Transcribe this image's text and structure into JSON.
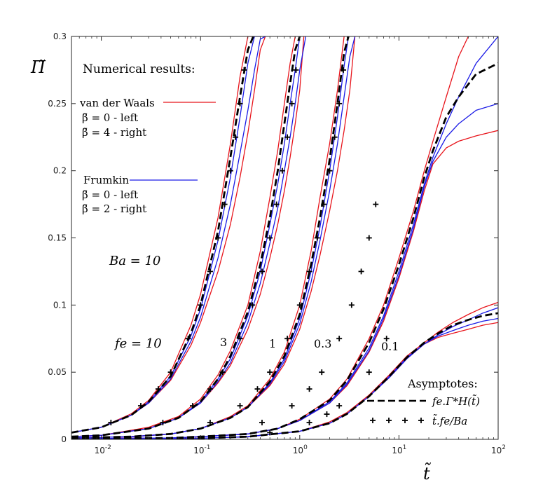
{
  "chart_data": {
    "type": "line",
    "xscale": "log",
    "xlim": [
      0.005,
      100
    ],
    "ylim": [
      0,
      0.3
    ],
    "xlabel": "t̃",
    "ylabel": "Π̃",
    "x_ticks": [
      {
        "value": 0.01,
        "base": "10",
        "exp": "-2"
      },
      {
        "value": 0.1,
        "base": "10",
        "exp": "-1"
      },
      {
        "value": 1,
        "base": "10",
        "exp": "0"
      },
      {
        "value": 10,
        "base": "10",
        "exp": "1"
      },
      {
        "value": 100,
        "base": "10",
        "exp": "2"
      }
    ],
    "y_ticks": [
      {
        "value": 0,
        "label": "0"
      },
      {
        "value": 0.05,
        "label": "0.05"
      },
      {
        "value": 0.1,
        "label": "0.1"
      },
      {
        "value": 0.15,
        "label": "0.15"
      },
      {
        "value": 0.2,
        "label": "0.2"
      },
      {
        "value": 0.25,
        "label": "0.25"
      },
      {
        "value": 0.3,
        "label": "0.3"
      }
    ],
    "colors": {
      "vdw": "#e8141b",
      "frumkin": "#1a1ae6",
      "asymptote": "#000000"
    },
    "legend": {
      "numerical_title": "Numerical results:",
      "vdw_name": "van der Waals",
      "vdw_left": "β̃ = 0 - left",
      "vdw_right": "β̃ = 4 - right",
      "frumkin_name": "Frumkin",
      "frumkin_left": "β̃ = 0 - left",
      "frumkin_right": "β̃ = 2 - right",
      "asymptotes_title": "Asymptotes:",
      "dashed_label": "fe.Γ*H(t̃)",
      "plus_label": "t̃.fe/Ba"
    },
    "annotations": {
      "ba_label": "Ba = 10",
      "fe_label": "fe = 10",
      "fe_values": [
        "3",
        "1",
        "0.3",
        "0.1"
      ]
    },
    "series": [
      {
        "name": "van der Waals β̃=0, fe=10",
        "group": "vdw",
        "x": [
          0.005,
          0.01,
          0.02,
          0.03,
          0.05,
          0.08,
          0.1,
          0.15,
          0.2,
          0.25,
          0.3,
          0.35
        ],
        "y": [
          0.005,
          0.009,
          0.019,
          0.029,
          0.05,
          0.085,
          0.108,
          0.165,
          0.22,
          0.27,
          0.3,
          0.3
        ]
      },
      {
        "name": "van der Waals β̃=4, fe=10",
        "group": "vdw",
        "x": [
          0.005,
          0.01,
          0.02,
          0.03,
          0.05,
          0.08,
          0.1,
          0.15,
          0.2,
          0.25,
          0.3,
          0.35,
          0.4,
          0.45
        ],
        "y": [
          0.005,
          0.009,
          0.018,
          0.027,
          0.044,
          0.07,
          0.087,
          0.125,
          0.16,
          0.195,
          0.228,
          0.26,
          0.29,
          0.3
        ]
      },
      {
        "name": "Frumkin β̃=0, fe=10",
        "group": "frumkin",
        "x": [
          0.005,
          0.01,
          0.02,
          0.03,
          0.05,
          0.08,
          0.1,
          0.15,
          0.2,
          0.25,
          0.3,
          0.35,
          0.4
        ],
        "y": [
          0.005,
          0.009,
          0.018,
          0.028,
          0.047,
          0.077,
          0.097,
          0.148,
          0.195,
          0.24,
          0.28,
          0.3,
          0.3
        ]
      },
      {
        "name": "Frumkin β̃=2, fe=10",
        "group": "frumkin",
        "x": [
          0.005,
          0.01,
          0.02,
          0.03,
          0.05,
          0.08,
          0.1,
          0.15,
          0.2,
          0.25,
          0.3,
          0.35,
          0.4,
          0.45
        ],
        "y": [
          0.005,
          0.009,
          0.018,
          0.027,
          0.045,
          0.073,
          0.091,
          0.135,
          0.175,
          0.213,
          0.245,
          0.275,
          0.298,
          0.3
        ]
      },
      {
        "name": "Asymptote fe.ΓH*, fe=10",
        "group": "asym",
        "x": [
          0.005,
          0.01,
          0.02,
          0.03,
          0.05,
          0.08,
          0.1,
          0.15,
          0.2,
          0.25,
          0.3,
          0.34
        ],
        "y": [
          0.005,
          0.009,
          0.018,
          0.028,
          0.047,
          0.079,
          0.1,
          0.155,
          0.21,
          0.255,
          0.29,
          0.3
        ]
      },
      {
        "name": "van der Waals β̃=0, fe=3",
        "group": "vdw",
        "x": [
          0.005,
          0.01,
          0.03,
          0.06,
          0.1,
          0.15,
          0.2,
          0.3,
          0.4,
          0.5,
          0.6,
          0.7,
          0.8,
          0.9
        ],
        "y": [
          0.002,
          0.003,
          0.009,
          0.017,
          0.03,
          0.048,
          0.066,
          0.1,
          0.14,
          0.18,
          0.215,
          0.25,
          0.28,
          0.3
        ]
      },
      {
        "name": "van der Waals β̃=4, fe=3",
        "group": "vdw",
        "x": [
          0.005,
          0.01,
          0.03,
          0.06,
          0.1,
          0.15,
          0.2,
          0.3,
          0.4,
          0.5,
          0.6,
          0.7,
          0.8,
          0.9,
          1.0,
          1.1
        ],
        "y": [
          0.002,
          0.003,
          0.008,
          0.016,
          0.027,
          0.042,
          0.055,
          0.082,
          0.108,
          0.135,
          0.16,
          0.185,
          0.21,
          0.235,
          0.26,
          0.3
        ]
      },
      {
        "name": "Frumkin β̃=0, fe=3",
        "group": "frumkin",
        "x": [
          0.005,
          0.01,
          0.03,
          0.06,
          0.1,
          0.15,
          0.2,
          0.3,
          0.4,
          0.5,
          0.6,
          0.7,
          0.8,
          0.9,
          1.0
        ],
        "y": [
          0.002,
          0.003,
          0.008,
          0.016,
          0.028,
          0.045,
          0.06,
          0.092,
          0.125,
          0.16,
          0.19,
          0.22,
          0.25,
          0.275,
          0.3
        ]
      },
      {
        "name": "Frumkin β̃=2, fe=3",
        "group": "frumkin",
        "x": [
          0.005,
          0.01,
          0.03,
          0.06,
          0.1,
          0.15,
          0.2,
          0.3,
          0.4,
          0.5,
          0.6,
          0.7,
          0.8,
          0.9,
          1.0,
          1.15
        ],
        "y": [
          0.002,
          0.003,
          0.008,
          0.016,
          0.027,
          0.043,
          0.057,
          0.087,
          0.116,
          0.146,
          0.172,
          0.2,
          0.225,
          0.25,
          0.275,
          0.3
        ]
      },
      {
        "name": "Asymptote fe.ΓH*, fe=3",
        "group": "asym",
        "x": [
          0.005,
          0.01,
          0.03,
          0.06,
          0.1,
          0.15,
          0.2,
          0.3,
          0.4,
          0.5,
          0.6,
          0.7,
          0.8,
          0.9,
          1.0
        ],
        "y": [
          0.002,
          0.003,
          0.008,
          0.016,
          0.028,
          0.045,
          0.062,
          0.095,
          0.13,
          0.165,
          0.2,
          0.235,
          0.265,
          0.29,
          0.3
        ]
      },
      {
        "name": "van der Waals β̃=0, fe=1",
        "group": "vdw",
        "x": [
          0.005,
          0.02,
          0.05,
          0.1,
          0.2,
          0.3,
          0.5,
          0.7,
          1.0,
          1.3,
          1.6,
          2.0,
          2.4,
          2.8
        ],
        "y": [
          0.001,
          0.002,
          0.004,
          0.008,
          0.017,
          0.025,
          0.045,
          0.065,
          0.1,
          0.14,
          0.18,
          0.22,
          0.26,
          0.3
        ]
      },
      {
        "name": "van der Waals β̃=4, fe=1",
        "group": "vdw",
        "x": [
          0.005,
          0.02,
          0.05,
          0.1,
          0.2,
          0.3,
          0.5,
          0.7,
          1.0,
          1.3,
          1.6,
          2.0,
          2.4,
          2.8,
          3.2,
          3.6
        ],
        "y": [
          0.001,
          0.002,
          0.004,
          0.008,
          0.016,
          0.024,
          0.04,
          0.056,
          0.082,
          0.11,
          0.137,
          0.17,
          0.2,
          0.23,
          0.26,
          0.3
        ]
      },
      {
        "name": "Frumkin β̃=0, fe=1",
        "group": "frumkin",
        "x": [
          0.005,
          0.02,
          0.05,
          0.1,
          0.2,
          0.3,
          0.5,
          0.7,
          1.0,
          1.3,
          1.6,
          2.0,
          2.4,
          2.8,
          3.1
        ],
        "y": [
          0.001,
          0.002,
          0.004,
          0.008,
          0.016,
          0.024,
          0.042,
          0.06,
          0.09,
          0.125,
          0.158,
          0.2,
          0.24,
          0.278,
          0.3
        ]
      },
      {
        "name": "Frumkin β̃=2, fe=1",
        "group": "frumkin",
        "x": [
          0.005,
          0.02,
          0.05,
          0.1,
          0.2,
          0.3,
          0.5,
          0.7,
          1.0,
          1.3,
          1.6,
          2.0,
          2.4,
          2.8,
          3.2,
          3.6
        ],
        "y": [
          0.001,
          0.002,
          0.004,
          0.008,
          0.016,
          0.024,
          0.041,
          0.058,
          0.086,
          0.117,
          0.148,
          0.185,
          0.22,
          0.255,
          0.285,
          0.3
        ]
      },
      {
        "name": "Asymptote fe.ΓH*, fe=1",
        "group": "asym",
        "x": [
          0.005,
          0.02,
          0.05,
          0.1,
          0.2,
          0.3,
          0.5,
          0.7,
          1.0,
          1.3,
          1.6,
          2.0,
          2.4,
          2.8,
          3.1
        ],
        "y": [
          0.001,
          0.002,
          0.004,
          0.008,
          0.016,
          0.024,
          0.043,
          0.062,
          0.093,
          0.13,
          0.165,
          0.208,
          0.25,
          0.288,
          0.3
        ]
      },
      {
        "name": "van der Waals β̃=0, fe=0.3",
        "group": "vdw",
        "x": [
          0.005,
          0.05,
          0.1,
          0.3,
          0.6,
          1.0,
          2.0,
          3.0,
          5.0,
          7.0,
          10,
          14,
          18,
          22,
          30,
          40,
          50
        ],
        "y": [
          0.0005,
          0.001,
          0.002,
          0.004,
          0.008,
          0.015,
          0.03,
          0.045,
          0.075,
          0.1,
          0.135,
          0.17,
          0.2,
          0.222,
          0.255,
          0.285,
          0.3
        ]
      },
      {
        "name": "van der Waals β̃=4, fe=0.3",
        "group": "vdw",
        "x": [
          0.005,
          0.05,
          0.1,
          0.3,
          0.6,
          1.0,
          2.0,
          3.0,
          5.0,
          7.0,
          10,
          14,
          18,
          22,
          30,
          40,
          60,
          100
        ],
        "y": [
          0.0005,
          0.001,
          0.002,
          0.004,
          0.008,
          0.014,
          0.027,
          0.04,
          0.065,
          0.088,
          0.12,
          0.155,
          0.185,
          0.205,
          0.217,
          0.222,
          0.226,
          0.23
        ]
      },
      {
        "name": "Frumkin β̃=0, fe=0.3",
        "group": "frumkin",
        "x": [
          0.005,
          0.05,
          0.1,
          0.3,
          0.6,
          1.0,
          2.0,
          3.0,
          5.0,
          7.0,
          10,
          14,
          18,
          22,
          30,
          40,
          60,
          100
        ],
        "y": [
          0.0005,
          0.001,
          0.002,
          0.004,
          0.008,
          0.014,
          0.028,
          0.042,
          0.068,
          0.092,
          0.125,
          0.16,
          0.19,
          0.21,
          0.235,
          0.255,
          0.28,
          0.3
        ]
      },
      {
        "name": "Frumkin β̃=2, fe=0.3",
        "group": "frumkin",
        "x": [
          0.005,
          0.05,
          0.1,
          0.3,
          0.6,
          1.0,
          2.0,
          3.0,
          5.0,
          7.0,
          10,
          14,
          18,
          22,
          30,
          40,
          60,
          100
        ],
        "y": [
          0.0005,
          0.001,
          0.002,
          0.004,
          0.008,
          0.014,
          0.027,
          0.041,
          0.066,
          0.09,
          0.122,
          0.157,
          0.188,
          0.207,
          0.225,
          0.235,
          0.245,
          0.25
        ]
      },
      {
        "name": "Asymptote fe.ΓH*, fe=0.3",
        "group": "asym",
        "x": [
          0.005,
          0.05,
          0.1,
          0.3,
          0.6,
          1.0,
          2.0,
          3.0,
          5.0,
          7.0,
          10,
          14,
          18,
          22,
          30,
          40,
          60,
          100
        ],
        "y": [
          0.0005,
          0.001,
          0.002,
          0.004,
          0.008,
          0.015,
          0.029,
          0.044,
          0.072,
          0.097,
          0.13,
          0.165,
          0.195,
          0.215,
          0.24,
          0.255,
          0.272,
          0.28
        ]
      },
      {
        "name": "van der Waals β̃=0, fe=0.1",
        "group": "vdw",
        "x": [
          0.005,
          0.1,
          0.3,
          1.0,
          2.0,
          3.0,
          5.0,
          8.0,
          12,
          18,
          25,
          35,
          50,
          70,
          100
        ],
        "y": [
          0.0003,
          0.0008,
          0.002,
          0.006,
          0.013,
          0.02,
          0.033,
          0.048,
          0.062,
          0.072,
          0.08,
          0.087,
          0.093,
          0.098,
          0.102
        ]
      },
      {
        "name": "van der Waals β̃=4, fe=0.1",
        "group": "vdw",
        "x": [
          0.005,
          0.1,
          0.3,
          1.0,
          2.0,
          3.0,
          5.0,
          8.0,
          12,
          18,
          25,
          35,
          50,
          70,
          100
        ],
        "y": [
          0.0003,
          0.0008,
          0.002,
          0.006,
          0.012,
          0.019,
          0.032,
          0.046,
          0.06,
          0.071,
          0.076,
          0.079,
          0.082,
          0.085,
          0.087
        ]
      },
      {
        "name": "Frumkin β̃=0, fe=0.1",
        "group": "frumkin",
        "x": [
          0.005,
          0.1,
          0.3,
          1.0,
          2.0,
          3.0,
          5.0,
          8.0,
          12,
          18,
          25,
          35,
          50,
          70,
          100
        ],
        "y": [
          0.0003,
          0.0008,
          0.002,
          0.006,
          0.012,
          0.019,
          0.032,
          0.047,
          0.061,
          0.071,
          0.078,
          0.084,
          0.089,
          0.094,
          0.098
        ]
      },
      {
        "name": "Frumkin β̃=2, fe=0.1",
        "group": "frumkin",
        "x": [
          0.005,
          0.1,
          0.3,
          1.0,
          2.0,
          3.0,
          5.0,
          8.0,
          12,
          18,
          25,
          35,
          50,
          70,
          100
        ],
        "y": [
          0.0003,
          0.0008,
          0.002,
          0.006,
          0.012,
          0.019,
          0.032,
          0.046,
          0.06,
          0.071,
          0.077,
          0.081,
          0.085,
          0.088,
          0.09
        ]
      },
      {
        "name": "Asymptote fe.ΓH*, fe=0.1",
        "group": "asym",
        "x": [
          0.005,
          0.1,
          0.3,
          1.0,
          2.0,
          3.0,
          5.0,
          8.0,
          12,
          18,
          25,
          35,
          50,
          70,
          100
        ],
        "y": [
          0.0003,
          0.0008,
          0.002,
          0.006,
          0.012,
          0.019,
          0.032,
          0.047,
          0.061,
          0.072,
          0.079,
          0.085,
          0.089,
          0.092,
          0.094
        ]
      }
    ],
    "plus_series": [
      {
        "name": "t̃.fe/Ba, fe=10",
        "x": [
          0.0125,
          0.025,
          0.0375,
          0.05,
          0.075,
          0.1,
          0.125,
          0.15,
          0.175,
          0.2,
          0.225,
          0.25,
          0.275
        ],
        "y": [
          0.0125,
          0.025,
          0.0375,
          0.05,
          0.075,
          0.1,
          0.125,
          0.15,
          0.175,
          0.2,
          0.225,
          0.25,
          0.275
        ]
      },
      {
        "name": "t̃.fe/Ba, fe=3",
        "x": [
          0.0417,
          0.0833,
          0.125,
          0.167,
          0.25,
          0.333,
          0.417,
          0.5,
          0.583,
          0.667,
          0.75,
          0.833,
          0.917
        ],
        "y": [
          0.0125,
          0.025,
          0.0375,
          0.05,
          0.075,
          0.1,
          0.125,
          0.15,
          0.175,
          0.2,
          0.225,
          0.25,
          0.275
        ]
      },
      {
        "name": "t̃.fe/Ba, fe=1",
        "x": [
          0.125,
          0.25,
          0.375,
          0.5,
          0.75,
          1.0,
          1.25,
          1.5,
          1.75,
          2.0,
          2.25,
          2.5,
          2.75
        ],
        "y": [
          0.0125,
          0.025,
          0.0375,
          0.05,
          0.075,
          0.1,
          0.125,
          0.15,
          0.175,
          0.2,
          0.225,
          0.25,
          0.275
        ]
      },
      {
        "name": "t̃.fe/Ba, fe=0.3",
        "x": [
          0.4167,
          0.8333,
          1.25,
          1.667,
          2.5,
          3.333,
          4.167,
          5.0,
          5.833
        ],
        "y": [
          0.0125,
          0.025,
          0.0375,
          0.05,
          0.075,
          0.1,
          0.125,
          0.15,
          0.175
        ]
      },
      {
        "name": "t̃.fe/Ba, fe=0.1",
        "x": [
          0.5,
          1.25,
          1.875,
          2.5,
          5.0,
          7.5
        ],
        "y": [
          0.005,
          0.0125,
          0.01875,
          0.025,
          0.05,
          0.075
        ]
      }
    ]
  }
}
